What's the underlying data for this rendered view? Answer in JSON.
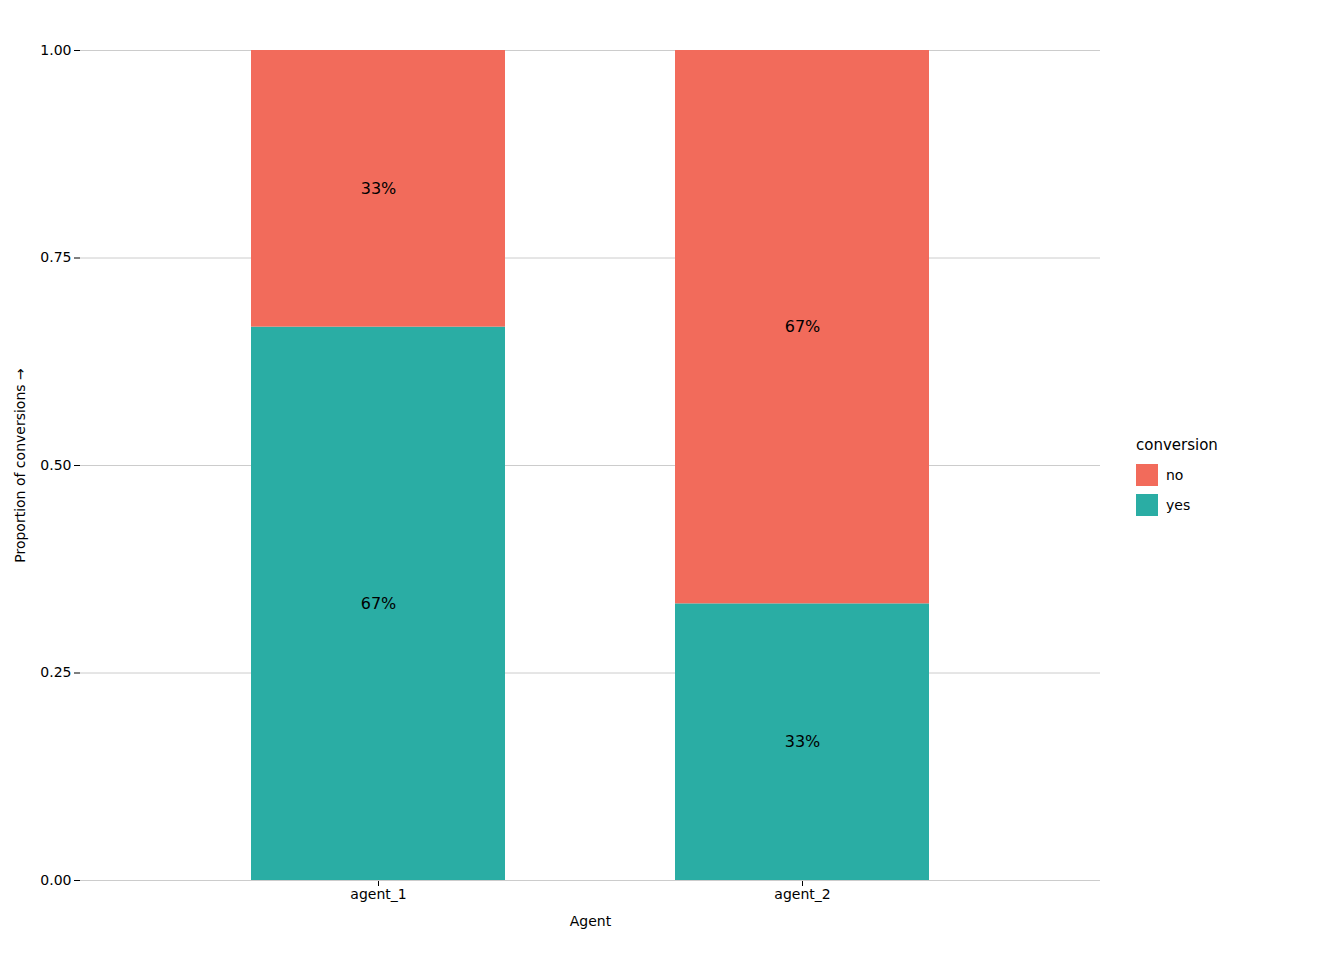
{
  "chart_data": {
    "type": "bar",
    "stacked": true,
    "xlabel": "Agent",
    "ylabel": "Proportion of conversions",
    "categories": [
      "agent_1",
      "agent_2"
    ],
    "series": [
      {
        "name": "yes",
        "color": "#2aada4",
        "values": [
          0.6667,
          0.3333
        ],
        "value_labels": [
          "67%",
          "33%"
        ]
      },
      {
        "name": "no",
        "color": "#f26b5b",
        "values": [
          0.3333,
          0.6667
        ],
        "value_labels": [
          "33%",
          "67%"
        ]
      }
    ],
    "legend_title": "conversion",
    "legend": "right",
    "ylim": [
      0,
      1.0
    ],
    "yticks": [
      {
        "value": 0,
        "label": "0.00"
      },
      {
        "value": 0.25,
        "label": "0.25"
      },
      {
        "value": 0.5,
        "label": "0.50"
      },
      {
        "value": 0.75,
        "label": "0.75"
      },
      {
        "value": 1,
        "label": "1.00"
      }
    ],
    "grid": true,
    "data_labels": true
  }
}
